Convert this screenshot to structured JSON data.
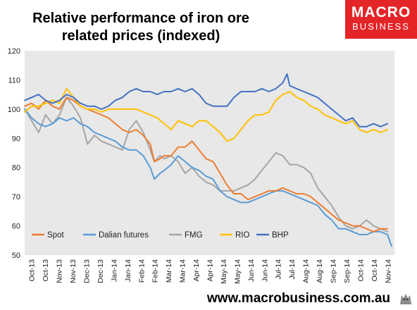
{
  "header": {
    "title_line1": "Relative performance of iron ore",
    "title_line2": "related prices (indexed)"
  },
  "logo": {
    "line1": "MACRO",
    "line2": "BUSINESS",
    "color": "#e42528"
  },
  "footer": {
    "website": "www.macrobusiness.com.au"
  },
  "chart_data": {
    "type": "line",
    "title": "Relative performance of iron ore related prices (indexed)",
    "xlabel": "",
    "ylabel": "",
    "ylim": [
      50,
      120
    ],
    "yticks": [
      50,
      60,
      70,
      80,
      90,
      100,
      110,
      120
    ],
    "grid": false,
    "legend_position": "bottom-left",
    "plot_background": "#e8e8e8",
    "x_tick_labels": [
      "Oct-13",
      "Oct-13",
      "Nov-13",
      "Nov-13",
      "Dec-13",
      "Dec-13",
      "Jan-14",
      "Jan-14",
      "Feb-14",
      "Feb-14",
      "Mar-14",
      "Mar-14",
      "Apr-14",
      "Apr-14",
      "May-14",
      "May-14",
      "Jun-14",
      "Jun-14",
      "Jul-14",
      "Jul-14",
      "Aug-14",
      "Aug-14",
      "Sep-14",
      "Sep-14",
      "Oct-14",
      "Oct-14",
      "Nov-14"
    ],
    "x_range": [
      0,
      26.5
    ],
    "series": [
      {
        "name": "Spot",
        "color": "#ed7d31",
        "points": [
          [
            0,
            101
          ],
          [
            0.5,
            102
          ],
          [
            1,
            100
          ],
          [
            1.5,
            103
          ],
          [
            2,
            101
          ],
          [
            2.5,
            100
          ],
          [
            3,
            104
          ],
          [
            3.5,
            103
          ],
          [
            4,
            101
          ],
          [
            4.5,
            100
          ],
          [
            5,
            99
          ],
          [
            5.5,
            98
          ],
          [
            6,
            97
          ],
          [
            6.5,
            95
          ],
          [
            7,
            93
          ],
          [
            7.5,
            92
          ],
          [
            8,
            93
          ],
          [
            8.5,
            91
          ],
          [
            9,
            88
          ],
          [
            9.3,
            82
          ],
          [
            9.7,
            83
          ],
          [
            10,
            84
          ],
          [
            10.5,
            84
          ],
          [
            11,
            87
          ],
          [
            11.5,
            87
          ],
          [
            12,
            89
          ],
          [
            12.5,
            86
          ],
          [
            13,
            83
          ],
          [
            13.5,
            82
          ],
          [
            14,
            78
          ],
          [
            14.5,
            74
          ],
          [
            15,
            71
          ],
          [
            15.5,
            71
          ],
          [
            16,
            69
          ],
          [
            16.5,
            70
          ],
          [
            17,
            71
          ],
          [
            17.5,
            72
          ],
          [
            18,
            72
          ],
          [
            18.5,
            73
          ],
          [
            19,
            72
          ],
          [
            19.5,
            71
          ],
          [
            20,
            71
          ],
          [
            20.5,
            70
          ],
          [
            21,
            68
          ],
          [
            21.5,
            66
          ],
          [
            22,
            64
          ],
          [
            22.5,
            62
          ],
          [
            23,
            61
          ],
          [
            23.5,
            60
          ],
          [
            24,
            60
          ],
          [
            24.5,
            59
          ],
          [
            25,
            58
          ],
          [
            25.5,
            59
          ],
          [
            26,
            59
          ]
        ]
      },
      {
        "name": "Dalian futures",
        "color": "#5b9bd5",
        "points": [
          [
            0,
            100
          ],
          [
            0.5,
            97
          ],
          [
            1,
            95
          ],
          [
            1.5,
            94
          ],
          [
            2,
            95
          ],
          [
            2.5,
            97
          ],
          [
            3,
            96
          ],
          [
            3.5,
            97
          ],
          [
            4,
            95
          ],
          [
            4.5,
            94
          ],
          [
            5,
            92
          ],
          [
            5.5,
            91
          ],
          [
            6,
            90
          ],
          [
            6.5,
            89
          ],
          [
            7,
            87
          ],
          [
            7.5,
            86
          ],
          [
            8,
            86
          ],
          [
            8.5,
            84
          ],
          [
            9,
            80
          ],
          [
            9.3,
            76
          ],
          [
            9.7,
            78
          ],
          [
            10,
            79
          ],
          [
            10.5,
            81
          ],
          [
            11,
            84
          ],
          [
            11.5,
            82
          ],
          [
            12,
            80
          ],
          [
            12.5,
            79
          ],
          [
            13,
            77
          ],
          [
            13.5,
            76
          ],
          [
            14,
            72
          ],
          [
            14.5,
            70
          ],
          [
            15,
            69
          ],
          [
            15.5,
            68
          ],
          [
            16,
            68
          ],
          [
            16.5,
            69
          ],
          [
            17,
            70
          ],
          [
            17.5,
            71
          ],
          [
            18,
            72
          ],
          [
            18.5,
            72
          ],
          [
            19,
            71
          ],
          [
            19.5,
            70
          ],
          [
            20,
            69
          ],
          [
            20.5,
            68
          ],
          [
            21,
            67
          ],
          [
            21.5,
            64
          ],
          [
            22,
            62
          ],
          [
            22.5,
            59
          ],
          [
            23,
            59
          ],
          [
            23.5,
            58
          ],
          [
            24,
            57
          ],
          [
            24.5,
            57
          ],
          [
            25,
            58
          ],
          [
            25.5,
            58
          ],
          [
            26,
            57
          ],
          [
            26.3,
            53
          ]
        ]
      },
      {
        "name": "FMG",
        "color": "#a5a5a5",
        "points": [
          [
            0,
            100
          ],
          [
            0.5,
            96
          ],
          [
            1,
            92
          ],
          [
            1.5,
            98
          ],
          [
            2,
            95
          ],
          [
            2.5,
            98
          ],
          [
            3,
            104
          ],
          [
            3.5,
            101
          ],
          [
            4,
            97
          ],
          [
            4.5,
            88
          ],
          [
            5,
            91
          ],
          [
            5.5,
            89
          ],
          [
            6,
            88
          ],
          [
            6.5,
            87
          ],
          [
            7,
            86
          ],
          [
            7.5,
            93
          ],
          [
            8,
            96
          ],
          [
            8.5,
            92
          ],
          [
            9,
            86
          ],
          [
            9.3,
            82
          ],
          [
            9.7,
            84
          ],
          [
            10,
            83
          ],
          [
            10.5,
            84
          ],
          [
            11,
            82
          ],
          [
            11.5,
            78
          ],
          [
            12,
            80
          ],
          [
            12.5,
            77
          ],
          [
            13,
            75
          ],
          [
            13.5,
            74
          ],
          [
            14,
            72
          ],
          [
            14.5,
            72
          ],
          [
            15,
            72
          ],
          [
            15.5,
            73
          ],
          [
            16,
            74
          ],
          [
            16.5,
            76
          ],
          [
            17,
            79
          ],
          [
            17.5,
            82
          ],
          [
            18,
            85
          ],
          [
            18.5,
            84
          ],
          [
            19,
            81
          ],
          [
            19.5,
            81
          ],
          [
            20,
            80
          ],
          [
            20.5,
            78
          ],
          [
            21,
            73
          ],
          [
            21.5,
            70
          ],
          [
            22,
            67
          ],
          [
            22.5,
            63
          ],
          [
            23,
            60
          ],
          [
            23.5,
            59
          ],
          [
            24,
            60
          ],
          [
            24.5,
            62
          ],
          [
            25,
            60
          ],
          [
            25.5,
            59
          ],
          [
            26,
            58
          ]
        ]
      },
      {
        "name": "RIO",
        "color": "#ffc000",
        "points": [
          [
            0,
            99
          ],
          [
            0.5,
            101
          ],
          [
            1,
            101
          ],
          [
            1.5,
            102
          ],
          [
            2,
            103
          ],
          [
            2.5,
            102
          ],
          [
            3,
            107
          ],
          [
            3.5,
            104
          ],
          [
            4,
            101
          ],
          [
            4.5,
            100
          ],
          [
            5,
            100
          ],
          [
            5.5,
            99
          ],
          [
            6,
            100
          ],
          [
            6.5,
            100
          ],
          [
            7,
            100
          ],
          [
            7.5,
            100
          ],
          [
            8,
            100
          ],
          [
            8.5,
            99
          ],
          [
            9,
            98
          ],
          [
            9.5,
            97
          ],
          [
            10,
            95
          ],
          [
            10.5,
            93
          ],
          [
            11,
            96
          ],
          [
            11.5,
            95
          ],
          [
            12,
            94
          ],
          [
            12.5,
            96
          ],
          [
            13,
            96
          ],
          [
            13.5,
            94
          ],
          [
            14,
            92
          ],
          [
            14.5,
            89
          ],
          [
            15,
            90
          ],
          [
            15.5,
            93
          ],
          [
            16,
            96
          ],
          [
            16.5,
            98
          ],
          [
            17,
            98
          ],
          [
            17.5,
            99
          ],
          [
            18,
            103
          ],
          [
            18.5,
            105
          ],
          [
            19,
            106
          ],
          [
            19.5,
            104
          ],
          [
            20,
            103
          ],
          [
            20.5,
            101
          ],
          [
            21,
            100
          ],
          [
            21.5,
            98
          ],
          [
            22,
            97
          ],
          [
            22.5,
            96
          ],
          [
            23,
            95
          ],
          [
            23.5,
            96
          ],
          [
            24,
            93
          ],
          [
            24.5,
            92
          ],
          [
            25,
            93
          ],
          [
            25.5,
            92
          ],
          [
            26,
            93
          ]
        ]
      },
      {
        "name": "BHP",
        "color": "#4472c4",
        "points": [
          [
            0,
            103
          ],
          [
            0.5,
            104
          ],
          [
            1,
            105
          ],
          [
            1.5,
            103
          ],
          [
            2,
            102
          ],
          [
            2.5,
            103
          ],
          [
            3,
            105
          ],
          [
            3.5,
            104
          ],
          [
            4,
            102
          ],
          [
            4.5,
            101
          ],
          [
            5,
            101
          ],
          [
            5.5,
            100
          ],
          [
            6,
            101
          ],
          [
            6.5,
            103
          ],
          [
            7,
            104
          ],
          [
            7.5,
            106
          ],
          [
            8,
            107
          ],
          [
            8.5,
            106
          ],
          [
            9,
            106
          ],
          [
            9.5,
            105
          ],
          [
            10,
            106
          ],
          [
            10.5,
            106
          ],
          [
            11,
            107
          ],
          [
            11.5,
            106
          ],
          [
            12,
            107
          ],
          [
            12.5,
            105
          ],
          [
            13,
            102
          ],
          [
            13.5,
            101
          ],
          [
            14,
            101
          ],
          [
            14.5,
            101
          ],
          [
            15,
            104
          ],
          [
            15.5,
            106
          ],
          [
            16,
            106
          ],
          [
            16.5,
            106
          ],
          [
            17,
            107
          ],
          [
            17.5,
            106
          ],
          [
            18,
            107
          ],
          [
            18.5,
            109
          ],
          [
            18.8,
            112
          ],
          [
            19,
            108
          ],
          [
            19.5,
            107
          ],
          [
            20,
            106
          ],
          [
            20.5,
            105
          ],
          [
            21,
            104
          ],
          [
            21.5,
            102
          ],
          [
            22,
            100
          ],
          [
            22.5,
            98
          ],
          [
            23,
            96
          ],
          [
            23.5,
            97
          ],
          [
            24,
            94
          ],
          [
            24.5,
            94
          ],
          [
            25,
            95
          ],
          [
            25.5,
            94
          ],
          [
            26,
            95
          ]
        ]
      }
    ]
  }
}
